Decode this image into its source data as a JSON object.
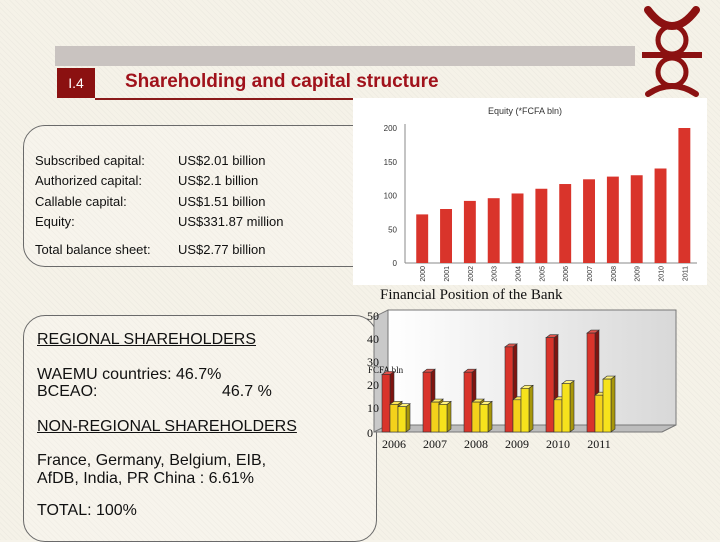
{
  "slide": {
    "number": "I.4",
    "title": "Shareholding and capital structure"
  },
  "capital": {
    "rows": [
      {
        "label": "Subscribed capital:",
        "value": "US$2.01 billion"
      },
      {
        "label": "Authorized capital:",
        "value": "US$2.1 billion"
      },
      {
        "label": "Callable capital:",
        "value": "US$1.51 billion"
      },
      {
        "label": "Equity:",
        "value": "US$331.87 million"
      }
    ],
    "total_label": "Total balance sheet:",
    "total_value": "US$2.77 billion"
  },
  "financial_caption": "Financial Position  of the Bank",
  "shareholders": {
    "regional_heading": "REGIONAL SHAREHOLDERS",
    "waemu": "WAEMU countries:   46.7%",
    "bceao_label": "BCEAO:",
    "bceao_value": "46.7 %",
    "nonregional_heading": "NON-REGIONAL SHAREHOLDERS",
    "nonregional_line1": "France, Germany, Belgium, EIB,",
    "nonregional_line2": "AfDB, India, PR China :   6.61%",
    "total": "TOTAL: 100%"
  },
  "colors": {
    "brand": "#8b1111",
    "title": "#a0121b",
    "bar_red": "#d9342b",
    "bar_yellow": "#f6e21c",
    "bar_dark": "#4a4a4a"
  },
  "chart_data": [
    {
      "type": "bar",
      "title": "Equity (*FCFA bln)",
      "categories": [
        "2000",
        "2001",
        "2002",
        "2003",
        "2004",
        "2005",
        "2006",
        "2007",
        "2008",
        "2009",
        "2010",
        "2011"
      ],
      "values": [
        72,
        80,
        92,
        96,
        103,
        110,
        117,
        124,
        128,
        130,
        140,
        200
      ],
      "ylim": [
        0,
        200
      ],
      "yticks": [
        "0",
        "50",
        "100",
        "150",
        "200"
      ],
      "grid": false
    },
    {
      "type": "bar",
      "title": "",
      "ylabel": "FCFA bln",
      "categories": [
        "2006",
        "2007",
        "2008",
        "2009",
        "2010",
        "2011"
      ],
      "series": [
        {
          "values": [
            25,
            26,
            26,
            37,
            41,
            43
          ]
        },
        {
          "values": [
            12,
            13,
            13,
            14,
            14,
            16
          ]
        },
        {
          "values": [
            11,
            12,
            12,
            19,
            21,
            23
          ]
        }
      ],
      "ylim": [
        0,
        50
      ],
      "yticks": [
        "0",
        "10",
        "20",
        "30",
        "40",
        "50"
      ],
      "grid": false
    }
  ]
}
